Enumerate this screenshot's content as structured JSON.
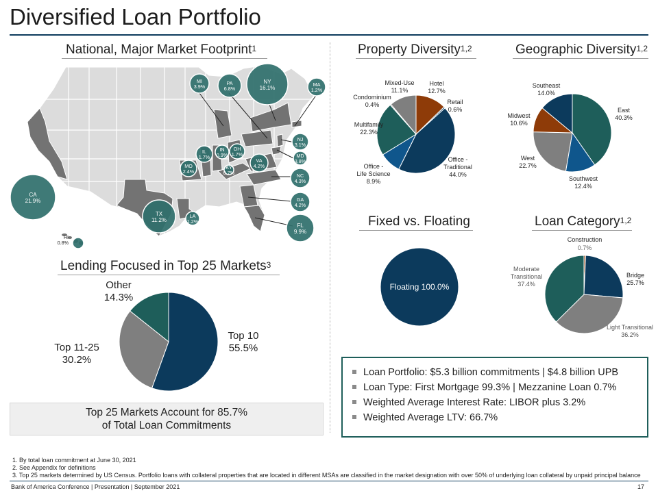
{
  "title": "Diversified Loan Portfolio",
  "sections": {
    "map": {
      "title": "National, Major Market Footprint",
      "sup": "1"
    },
    "top25": {
      "title": "Lending Focused in Top 25 Markets",
      "sup": "3"
    },
    "property": {
      "title": "Property Diversity",
      "sup": "1,2"
    },
    "geographic": {
      "title": "Geographic Diversity",
      "sup": "1,2"
    },
    "fixed": {
      "title": "Fixed vs. Floating"
    },
    "category": {
      "title": "Loan Category",
      "sup": "1,2"
    }
  },
  "map_markers": [
    {
      "state": "MI",
      "value": "3.9%"
    },
    {
      "state": "PA",
      "value": "6.8%"
    },
    {
      "state": "NY",
      "value": "16.1%"
    },
    {
      "state": "MA",
      "value": "1.2%"
    },
    {
      "state": "NJ",
      "value": "3.1%"
    },
    {
      "state": "MD",
      "value": "3.8%"
    },
    {
      "state": "IL",
      "value": "1.7%"
    },
    {
      "state": "IN",
      "value": "0.9%"
    },
    {
      "state": "OH",
      "value": "1.7%"
    },
    {
      "state": "VA",
      "value": "4.2%"
    },
    {
      "state": "KY",
      "value": "0.7%"
    },
    {
      "state": "MO",
      "value": "2.4%"
    },
    {
      "state": "NC",
      "value": "4.3%"
    },
    {
      "state": "GA",
      "value": "4.2%"
    },
    {
      "state": "FL",
      "value": "9.9%"
    },
    {
      "state": "CA",
      "value": "21.9%"
    },
    {
      "state": "TX",
      "value": "11.2%"
    },
    {
      "state": "LA",
      "value": "1.2%"
    },
    {
      "state": "HI",
      "value": "0.8%"
    }
  ],
  "chart_data": [
    {
      "type": "pie",
      "id": "top25",
      "title": "Lending Focused in Top 25 Markets",
      "slices": [
        {
          "label": "Top 10",
          "value": 55.5,
          "display": "55.5%",
          "color": "#0c3a5c"
        },
        {
          "label": "Top 11-25",
          "value": 30.2,
          "display": "30.2%",
          "color": "#7f7f7f"
        },
        {
          "label": "Other",
          "value": 14.3,
          "display": "14.3%",
          "color": "#1e5e5a"
        }
      ]
    },
    {
      "type": "pie",
      "id": "property",
      "title": "Property Diversity",
      "slices": [
        {
          "label": "Hotel",
          "value": 12.7,
          "display": "12.7%",
          "color": "#8e3b08"
        },
        {
          "label": "Retail",
          "value": 0.6,
          "display": "0.6%",
          "color": "#1b5077"
        },
        {
          "label": "Office - Traditional",
          "value": 44.0,
          "display": "44.0%",
          "color": "#0c3a5c"
        },
        {
          "label": "Office - Life Science",
          "value": 8.9,
          "display": "8.9%",
          "color": "#0f568c"
        },
        {
          "label": "Multifamily",
          "value": 22.3,
          "display": "22.3%",
          "color": "#1e5e5a"
        },
        {
          "label": "Condominium",
          "value": 0.4,
          "display": "0.4%",
          "color": "#5a5a5a"
        },
        {
          "label": "Mixed-Use",
          "value": 11.1,
          "display": "11.1%",
          "color": "#7f7f7f"
        }
      ]
    },
    {
      "type": "pie",
      "id": "geographic",
      "title": "Geographic Diversity",
      "slices": [
        {
          "label": "East",
          "value": 40.3,
          "display": "40.3%",
          "color": "#1e5e5a"
        },
        {
          "label": "Southwest",
          "value": 12.4,
          "display": "12.4%",
          "color": "#0f568c"
        },
        {
          "label": "West",
          "value": 22.7,
          "display": "22.7%",
          "color": "#7f7f7f"
        },
        {
          "label": "Midwest",
          "value": 10.6,
          "display": "10.6%",
          "color": "#8e3b08"
        },
        {
          "label": "Southeast",
          "value": 14.0,
          "display": "14.0%",
          "color": "#0c3a5c"
        }
      ]
    },
    {
      "type": "pie",
      "id": "fixed",
      "title": "Fixed vs. Floating",
      "slices": [
        {
          "label": "Floating",
          "value": 100.0,
          "display": "100.0%",
          "color": "#0c3a5c"
        }
      ]
    },
    {
      "type": "pie",
      "id": "category",
      "title": "Loan Category",
      "slices": [
        {
          "label": "Construction",
          "value": 0.7,
          "display": "0.7%",
          "color": "#8e3b08"
        },
        {
          "label": "Bridge",
          "value": 25.7,
          "display": "25.7%",
          "color": "#0c3a5c"
        },
        {
          "label": "Light Transitional",
          "value": 36.2,
          "display": "36.2%",
          "color": "#7f7f7f"
        },
        {
          "label": "Moderate Transitional",
          "value": 37.4,
          "display": "37.4%",
          "color": "#1e5e5a"
        }
      ]
    }
  ],
  "callout": {
    "line1": "Top 25 Markets Account for 85.7%",
    "line2": "of Total Loan Commitments"
  },
  "summary": [
    "Loan Portfolio: $5.3 billion commitments | $4.8 billion UPB",
    "Loan Type: First Mortgage 99.3% | Mezzanine Loan 0.7%",
    "Weighted Average Interest Rate: LIBOR plus 3.2%",
    "Weighted Average LTV: 66.7%"
  ],
  "footnotes": [
    "1. By total loan commitment at June 30, 2021",
    "2. See Appendix for definitions",
    "3. Top 25 markets determined by US Census. Portfolio loans with collateral properties that are located in different MSAs are classified in the market designation with over 50% of underlying loan collateral by unpaid principal balance"
  ],
  "footer": {
    "left": "Bank of America Conference | Presentation | September 2021",
    "page": "17"
  }
}
